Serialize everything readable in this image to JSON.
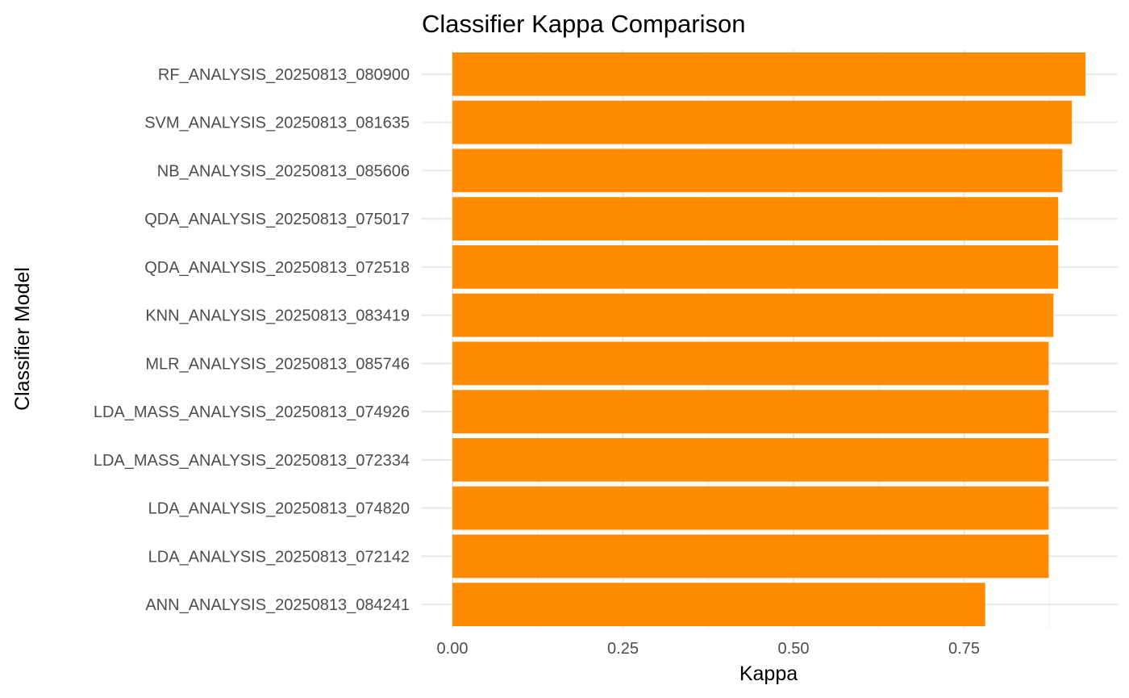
{
  "chart_data": {
    "type": "bar",
    "orientation": "horizontal",
    "title": "Classifier Kappa Comparison",
    "xlabel": "Kappa",
    "ylabel": "Classifier Model",
    "xlim": [
      0,
      0.93
    ],
    "x_ticks": [
      "0.00",
      "0.25",
      "0.50",
      "0.75"
    ],
    "grid": true,
    "legend": "none",
    "bar_color": "#FF8C00",
    "categories": [
      "RF_ANALYSIS_20250813_080900",
      "SVM_ANALYSIS_20250813_081635",
      "NB_ANALYSIS_20250813_085606",
      "QDA_ANALYSIS_20250813_075017",
      "QDA_ANALYSIS_20250813_072518",
      "KNN_ANALYSIS_20250813_083419",
      "MLR_ANALYSIS_20250813_085746",
      "LDA_MASS_ANALYSIS_20250813_074926",
      "LDA_MASS_ANALYSIS_20250813_072334",
      "LDA_ANALYSIS_20250813_074820",
      "LDA_ANALYSIS_20250813_072142",
      "ANN_ANALYSIS_20250813_084241"
    ],
    "values": [
      0.928,
      0.908,
      0.894,
      0.888,
      0.888,
      0.881,
      0.874,
      0.874,
      0.874,
      0.874,
      0.874,
      0.781
    ]
  }
}
